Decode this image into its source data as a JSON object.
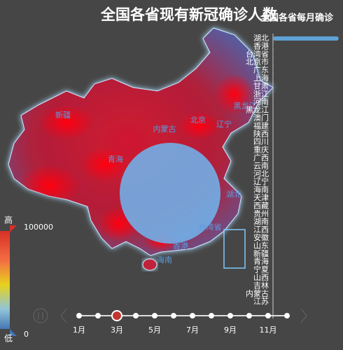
{
  "title": "全国各省现有新冠确诊人数",
  "map_labels": [
    "新疆",
    "青海",
    "内蒙古",
    "北京",
    "辽宁",
    "黑龙江",
    "湖北",
    "台湾省",
    "香港",
    "海南"
  ],
  "visual_map": {
    "high": "高",
    "low": "低",
    "max": 100000,
    "min": 0
  },
  "timeline": {
    "labels": [
      "1月",
      null,
      "3月",
      null,
      "5月",
      null,
      "7月",
      null,
      "9月",
      null,
      "11月",
      null
    ],
    "current": 2
  },
  "chart_data": {
    "type": "bar",
    "title": "全国各省每月确诊",
    "categories": [
      "湖北",
      "香港",
      "台湾省",
      "北京市",
      "广东",
      "上海",
      "甘肃",
      "浙江",
      "河南",
      "黑龙江",
      "澳门",
      "福建",
      "陕西",
      "四川",
      "重庆",
      "广西",
      "云南",
      "河北",
      "辽宁",
      "海南",
      "天津",
      "西藏",
      "贵州",
      "湖南",
      "江西",
      "安徽",
      "山东",
      "新疆",
      "青海",
      "宁夏",
      "山西",
      "吉林",
      "内蒙古",
      "江苏"
    ],
    "values": [
      67000,
      300,
      200,
      200,
      150,
      150,
      100,
      100,
      100,
      100,
      50,
      50,
      50,
      50,
      50,
      50,
      50,
      50,
      50,
      50,
      50,
      0,
      0,
      0,
      0,
      0,
      0,
      0,
      0,
      0,
      0,
      0,
      0,
      0
    ],
    "color": "#5fa3d6",
    "xlim": [
      0,
      70000
    ]
  }
}
